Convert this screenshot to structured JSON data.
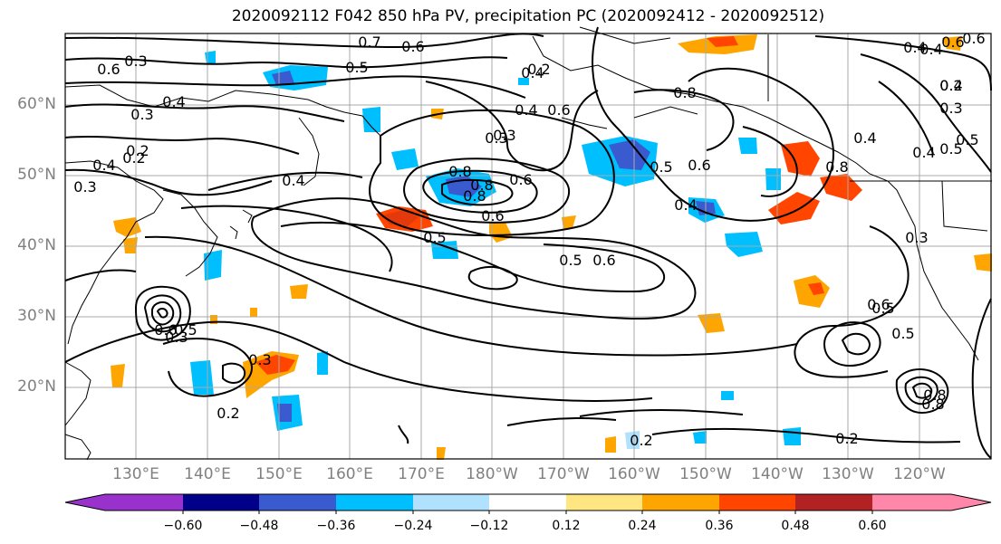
{
  "title": "2020092112 F042 850 hPa PV, precipitation PC (2020092412 - 2020092512)",
  "lat_labels": [
    "60°N",
    "50°N",
    "40°N",
    "30°N",
    "20°N"
  ],
  "lon_labels": [
    "130°E",
    "140°E",
    "150°E",
    "160°E",
    "170°E",
    "180°W",
    "170°W",
    "160°W",
    "150°W",
    "140°W",
    "130°W",
    "120°W"
  ],
  "colorbar": {
    "ticks": [
      "−0.60",
      "−0.48",
      "−0.36",
      "−0.24",
      "−0.12",
      "0.12",
      "0.24",
      "0.36",
      "0.48",
      "0.60"
    ],
    "colors": [
      "#9932cc",
      "#00008b",
      "#3a5bd0",
      "#00bfff",
      "#b0e2ff",
      "#ffffff",
      "#ffe680",
      "#ffa500",
      "#ff4500",
      "#b22222",
      "#ff88aa"
    ]
  },
  "contour_labels": [
    "0.7",
    "0.6",
    "0.5",
    "0.6",
    "0.4",
    "0.3",
    "0.4",
    "0.3",
    "0.2",
    "0.4",
    "0.3",
    "0.4",
    "0.8",
    "0.8",
    "0.3",
    "0.4",
    "0.8",
    "0.6",
    "0.5",
    "0.6",
    "0.5",
    "0.6",
    "0.8",
    "0.5",
    "0.6",
    "0.4",
    "0.8",
    "0.4",
    "0.4",
    "0.3",
    "0.5",
    "0.6",
    "0.4",
    "0.3",
    "0.6",
    "0.2",
    "0.3",
    "0.2",
    "0.2",
    "0.8",
    "0.5",
    "0.4",
    "0.2",
    "0.8",
    "0.6",
    "0.5",
    "0.2",
    "0.6",
    "0.3",
    "0.5",
    "0.2",
    "0.6",
    "0.4",
    "0.5",
    "0.3"
  ]
}
